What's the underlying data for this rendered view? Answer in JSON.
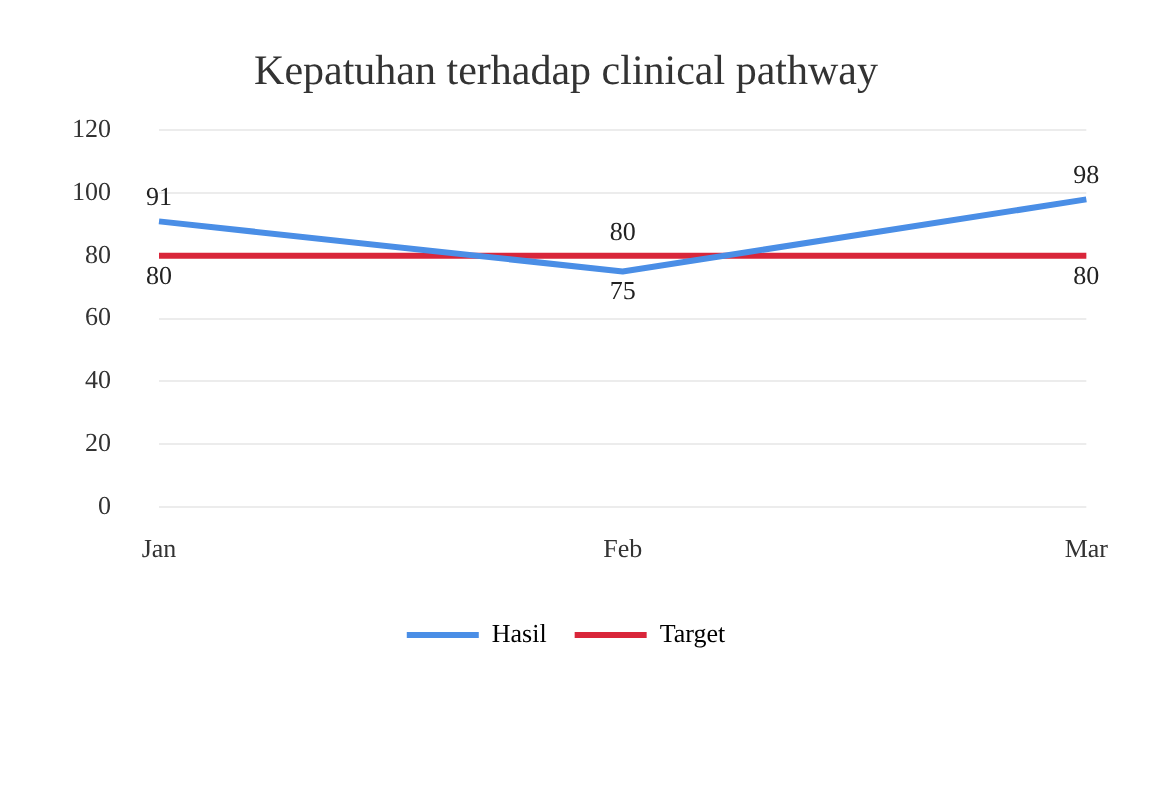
{
  "chart_data": {
    "type": "line",
    "title": "Kepatuhan terhadap clinical pathway",
    "categories": [
      "Jan",
      "Feb",
      "Mar"
    ],
    "series": [
      {
        "name": "Hasil",
        "color": "#4a8ee6",
        "values": [
          91,
          75,
          98
        ]
      },
      {
        "name": "Target",
        "color": "#d9263a",
        "values": [
          80,
          80,
          80
        ]
      }
    ],
    "ylim": [
      0,
      120
    ],
    "yticks": [
      0,
      20,
      40,
      60,
      80,
      100,
      120
    ],
    "grid": "y",
    "legend": "bottom",
    "data_labels": true,
    "marker": "none",
    "line_style": "solid"
  }
}
